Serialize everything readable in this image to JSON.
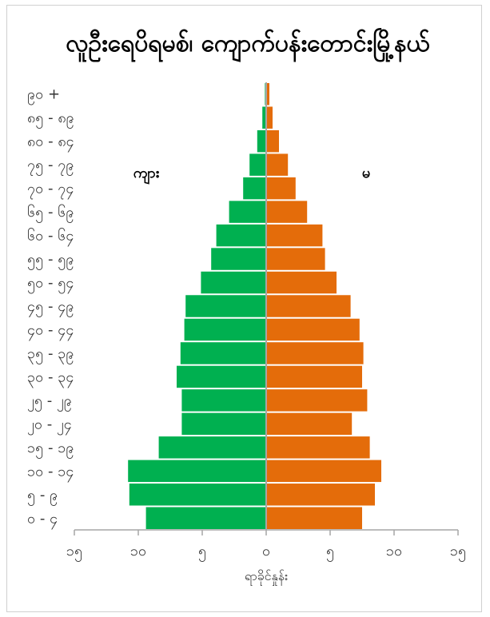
{
  "chart_data": {
    "type": "bar",
    "orientation": "horizontal-population-pyramid",
    "title": "လူဦးရေပိရမစ်၊ ကျောက်ပန်းတောင်းမြို့နယ်",
    "xlabel": "ရာခိုင်နှုန်း",
    "ylabel": "",
    "xlim": [
      -15,
      15
    ],
    "x_ticks": [
      -15,
      -10,
      -5,
      0,
      5,
      10,
      15
    ],
    "x_tick_labels": [
      "၁၅",
      "၁၀",
      "၅",
      "၀",
      "၅",
      "၁၀",
      "၁၅"
    ],
    "categories": [
      "၀ - ၄",
      "၅ - ၉",
      "၁၀ - ၁၄",
      "၁၅ - ၁၉",
      "၂၀ - ၂၄",
      "၂၅ - ၂၉",
      "၃၀ - ၃၄",
      "၃၅ - ၃၉",
      "၄၀ - ၄၄",
      "၄၅ - ၄၉",
      "၅၀ - ၅၄",
      "၅၅ - ၅၉",
      "၆၀ - ၆၄",
      "၆၅ - ၆၉",
      "၇၀ - ၇၄",
      "၇၅ - ၇၉",
      "၈၀ - ၈၄",
      "၈၅ - ၈၉",
      "၉၀ +"
    ],
    "series": [
      {
        "name": "ကျား",
        "color": "#00b050",
        "values": [
          9.4,
          10.7,
          10.8,
          8.4,
          6.6,
          6.6,
          7.0,
          6.7,
          6.4,
          6.3,
          5.1,
          4.3,
          3.9,
          2.9,
          1.8,
          1.3,
          0.7,
          0.3,
          0.1
        ]
      },
      {
        "name": "မ",
        "color": "#e46c0a",
        "values": [
          7.5,
          8.5,
          9.0,
          8.1,
          6.7,
          7.9,
          7.5,
          7.6,
          7.3,
          6.6,
          5.5,
          4.6,
          4.4,
          3.2,
          2.3,
          1.7,
          1.0,
          0.5,
          0.25
        ]
      }
    ],
    "grid": false,
    "legend": "inline labels"
  }
}
